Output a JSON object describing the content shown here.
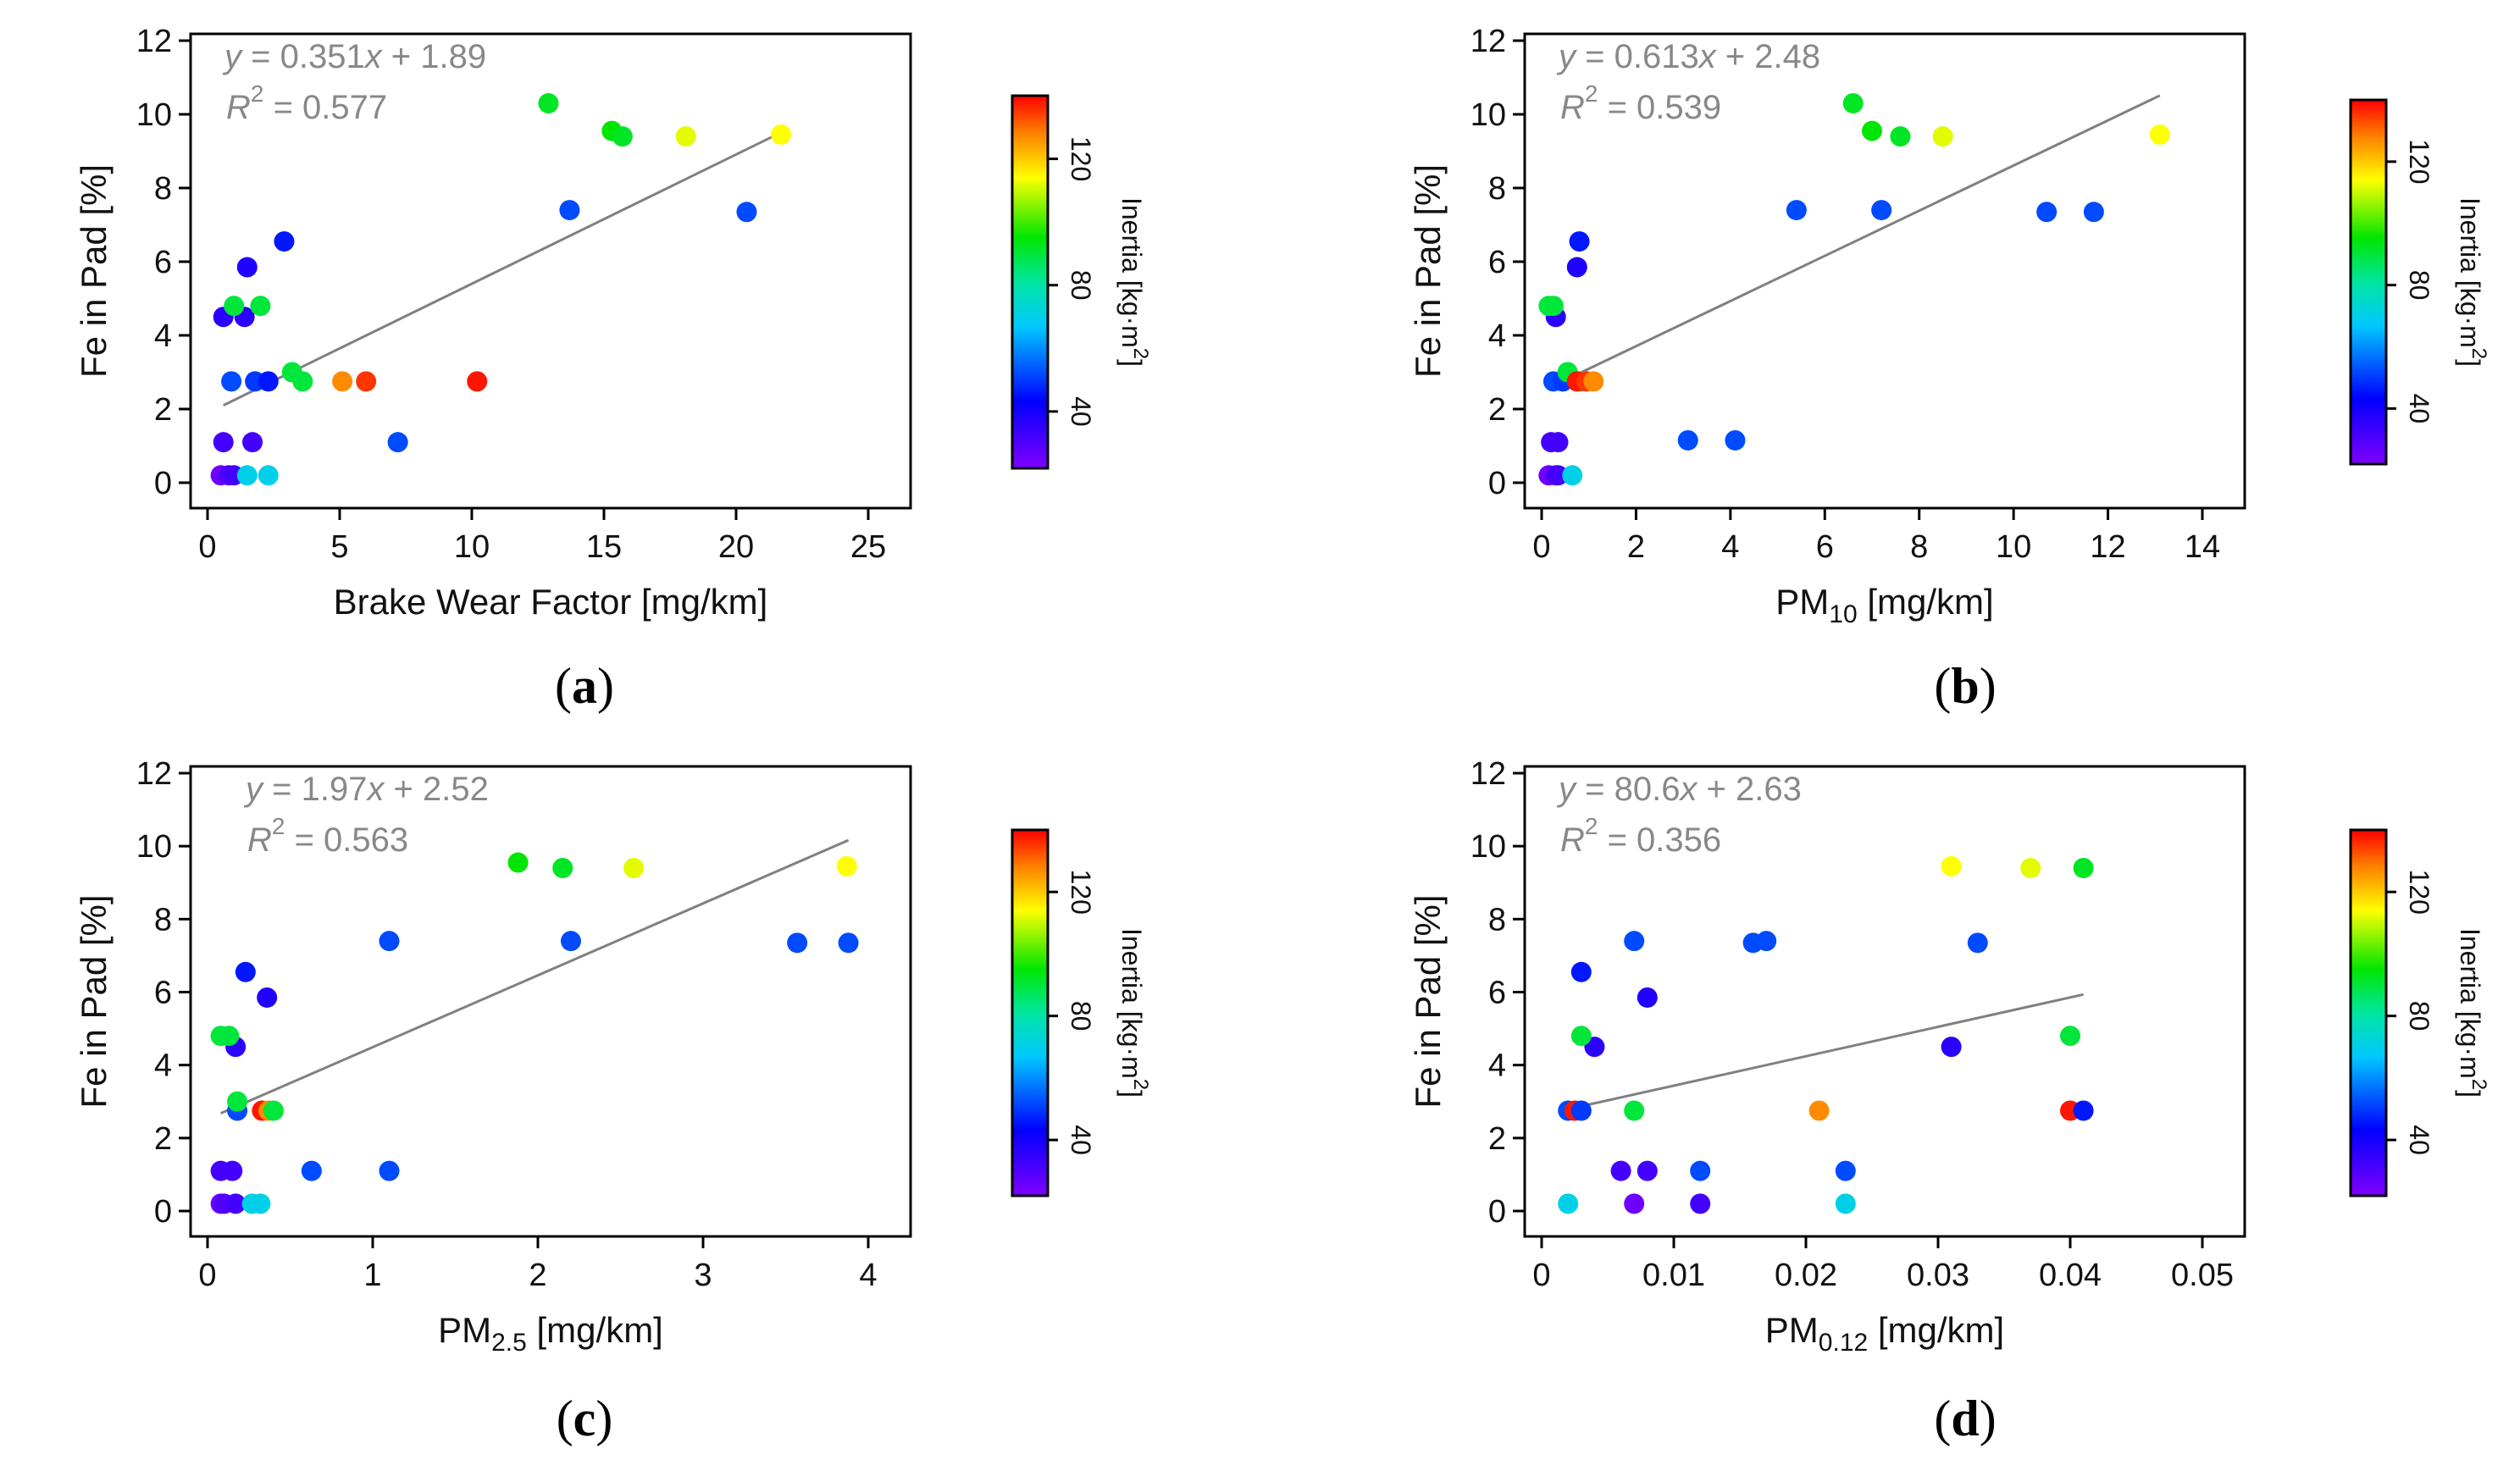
{
  "colors": {
    "trend_line": "#808080",
    "axis": "#000000",
    "equation_text": "#888888"
  },
  "colorbar": {
    "label_text": "Inertia [kg·m",
    "label_sup": "2",
    "label_close": "]",
    "ticks": [
      40,
      80,
      120
    ],
    "min": 22,
    "max": 140
  },
  "chart_data": [
    {
      "type": "scatter",
      "panel_label": "a",
      "xlabel_main": "Brake Wear Factor [mg/km]",
      "xlabel_sub": "",
      "xlabel_tail": "",
      "ylabel": "Fe in Pad [%]",
      "xlim": [
        0,
        25
      ],
      "ylim": [
        0,
        12
      ],
      "xticks": [
        0,
        5,
        10,
        15,
        20,
        25
      ],
      "xtick_labels": [
        "0",
        "5",
        "10",
        "15",
        "20",
        "25"
      ],
      "yticks": [
        0,
        2,
        4,
        6,
        8,
        10,
        12
      ],
      "ytick_labels": [
        "0",
        "2",
        "4",
        "6",
        "8",
        "10",
        "12"
      ],
      "equation": "y = 0.351x + 1.89",
      "r_squared": "R2 = 0.577",
      "fit": {
        "slope": 0.351,
        "intercept": 1.89,
        "x_range": [
          0.6,
          21.8
        ]
      },
      "points": [
        {
          "x": 0.5,
          "y": 0.2,
          "inertia": 25
        },
        {
          "x": 0.8,
          "y": 0.2,
          "inertia": 30
        },
        {
          "x": 1.0,
          "y": 0.2,
          "inertia": 32
        },
        {
          "x": 0.6,
          "y": 1.1,
          "inertia": 32
        },
        {
          "x": 1.7,
          "y": 1.1,
          "inertia": 32
        },
        {
          "x": 1.5,
          "y": 0.2,
          "inertia": 70
        },
        {
          "x": 2.3,
          "y": 0.2,
          "inertia": 70
        },
        {
          "x": 7.2,
          "y": 1.1,
          "inertia": 52
        },
        {
          "x": 0.9,
          "y": 2.75,
          "inertia": 52
        },
        {
          "x": 1.8,
          "y": 2.75,
          "inertia": 50
        },
        {
          "x": 2.3,
          "y": 2.75,
          "inertia": 46
        },
        {
          "x": 3.2,
          "y": 3.0,
          "inertia": 90
        },
        {
          "x": 3.6,
          "y": 2.75,
          "inertia": 90
        },
        {
          "x": 5.1,
          "y": 2.75,
          "inertia": 127
        },
        {
          "x": 6.0,
          "y": 2.75,
          "inertia": 135
        },
        {
          "x": 10.2,
          "y": 2.75,
          "inertia": 138
        },
        {
          "x": 0.6,
          "y": 4.5,
          "inertia": 36
        },
        {
          "x": 1.4,
          "y": 4.5,
          "inertia": 36
        },
        {
          "x": 1.0,
          "y": 4.8,
          "inertia": 90
        },
        {
          "x": 2.0,
          "y": 4.8,
          "inertia": 90
        },
        {
          "x": 1.5,
          "y": 5.85,
          "inertia": 38
        },
        {
          "x": 2.9,
          "y": 6.55,
          "inertia": 46
        },
        {
          "x": 13.7,
          "y": 7.4,
          "inertia": 52
        },
        {
          "x": 20.4,
          "y": 7.35,
          "inertia": 52
        },
        {
          "x": 12.9,
          "y": 10.3,
          "inertia": 92
        },
        {
          "x": 15.3,
          "y": 9.55,
          "inertia": 95
        },
        {
          "x": 15.7,
          "y": 9.4,
          "inertia": 92
        },
        {
          "x": 18.1,
          "y": 9.4,
          "inertia": 112
        },
        {
          "x": 21.7,
          "y": 9.45,
          "inertia": 114
        }
      ]
    },
    {
      "type": "scatter",
      "panel_label": "b",
      "xlabel_main": "PM",
      "xlabel_sub": "10",
      "xlabel_tail": " [mg/km]",
      "ylabel": "Fe in Pad [%]",
      "xlim": [
        0,
        14
      ],
      "ylim": [
        0,
        12
      ],
      "xticks": [
        0,
        2,
        4,
        6,
        8,
        10,
        12,
        14
      ],
      "xtick_labels": [
        "0",
        "2",
        "4",
        "6",
        "8",
        "10",
        "12",
        "14"
      ],
      "yticks": [
        0,
        2,
        4,
        6,
        8,
        10,
        12
      ],
      "ytick_labels": [
        "0",
        "2",
        "4",
        "6",
        "8",
        "10",
        "12"
      ],
      "equation": "y = 0.613x + 2.48",
      "r_squared": "R2 = 0.539",
      "fit": {
        "slope": 0.613,
        "intercept": 2.48,
        "x_range": [
          0.75,
          13.1
        ]
      },
      "points": [
        {
          "x": 0.15,
          "y": 0.2,
          "inertia": 25
        },
        {
          "x": 0.3,
          "y": 0.2,
          "inertia": 30
        },
        {
          "x": 0.35,
          "y": 0.2,
          "inertia": 32
        },
        {
          "x": 0.65,
          "y": 0.2,
          "inertia": 70
        },
        {
          "x": 0.2,
          "y": 1.1,
          "inertia": 32
        },
        {
          "x": 0.35,
          "y": 1.1,
          "inertia": 32
        },
        {
          "x": 3.1,
          "y": 1.15,
          "inertia": 52
        },
        {
          "x": 4.1,
          "y": 1.15,
          "inertia": 52
        },
        {
          "x": 0.25,
          "y": 2.75,
          "inertia": 52
        },
        {
          "x": 0.45,
          "y": 2.75,
          "inertia": 50
        },
        {
          "x": 0.55,
          "y": 3.0,
          "inertia": 90
        },
        {
          "x": 0.85,
          "y": 2.75,
          "inertia": 90
        },
        {
          "x": 0.75,
          "y": 2.75,
          "inertia": 138
        },
        {
          "x": 0.95,
          "y": 2.75,
          "inertia": 135
        },
        {
          "x": 1.1,
          "y": 2.75,
          "inertia": 127
        },
        {
          "x": 0.3,
          "y": 4.5,
          "inertia": 36
        },
        {
          "x": 0.15,
          "y": 4.8,
          "inertia": 90
        },
        {
          "x": 0.25,
          "y": 4.8,
          "inertia": 90
        },
        {
          "x": 0.75,
          "y": 5.85,
          "inertia": 38
        },
        {
          "x": 0.8,
          "y": 6.55,
          "inertia": 46
        },
        {
          "x": 5.4,
          "y": 7.4,
          "inertia": 52
        },
        {
          "x": 7.2,
          "y": 7.4,
          "inertia": 52
        },
        {
          "x": 10.7,
          "y": 7.35,
          "inertia": 52
        },
        {
          "x": 11.7,
          "y": 7.35,
          "inertia": 52
        },
        {
          "x": 6.6,
          "y": 10.3,
          "inertia": 92
        },
        {
          "x": 7.0,
          "y": 9.55,
          "inertia": 95
        },
        {
          "x": 7.6,
          "y": 9.4,
          "inertia": 92
        },
        {
          "x": 8.5,
          "y": 9.4,
          "inertia": 112
        },
        {
          "x": 13.1,
          "y": 9.45,
          "inertia": 114
        }
      ]
    },
    {
      "type": "scatter",
      "panel_label": "c",
      "xlabel_main": "PM",
      "xlabel_sub": "2.5",
      "xlabel_tail": " [mg/km]",
      "ylabel": "Fe in Pad [%]",
      "xlim": [
        0,
        4
      ],
      "ylim": [
        0,
        12
      ],
      "xticks": [
        0,
        1,
        2,
        3,
        4
      ],
      "xtick_labels": [
        "0",
        "1",
        "2",
        "3",
        "4"
      ],
      "yticks": [
        0,
        2,
        4,
        6,
        8,
        10,
        12
      ],
      "ytick_labels": [
        "0",
        "2",
        "4",
        "6",
        "8",
        "10",
        "12"
      ],
      "equation": "y = 1.97x + 2.52",
      "r_squared": "R2 = 0.563",
      "fit": {
        "slope": 1.97,
        "intercept": 2.52,
        "x_range": [
          0.08,
          3.88
        ]
      },
      "points": [
        {
          "x": 0.08,
          "y": 0.2,
          "inertia": 25
        },
        {
          "x": 0.1,
          "y": 0.2,
          "inertia": 30
        },
        {
          "x": 0.17,
          "y": 0.2,
          "inertia": 32
        },
        {
          "x": 0.27,
          "y": 0.2,
          "inertia": 70
        },
        {
          "x": 0.32,
          "y": 0.2,
          "inertia": 70
        },
        {
          "x": 0.08,
          "y": 1.1,
          "inertia": 32
        },
        {
          "x": 0.15,
          "y": 1.1,
          "inertia": 32
        },
        {
          "x": 0.63,
          "y": 1.1,
          "inertia": 52
        },
        {
          "x": 1.1,
          "y": 1.1,
          "inertia": 52
        },
        {
          "x": 0.18,
          "y": 2.75,
          "inertia": 52
        },
        {
          "x": 0.18,
          "y": 3.0,
          "inertia": 90
        },
        {
          "x": 0.33,
          "y": 2.75,
          "inertia": 138
        },
        {
          "x": 0.37,
          "y": 2.75,
          "inertia": 127
        },
        {
          "x": 0.4,
          "y": 2.75,
          "inertia": 90
        },
        {
          "x": 0.17,
          "y": 4.5,
          "inertia": 36
        },
        {
          "x": 0.08,
          "y": 4.8,
          "inertia": 90
        },
        {
          "x": 0.13,
          "y": 4.8,
          "inertia": 90
        },
        {
          "x": 0.36,
          "y": 5.85,
          "inertia": 38
        },
        {
          "x": 0.23,
          "y": 6.55,
          "inertia": 46
        },
        {
          "x": 1.1,
          "y": 7.4,
          "inertia": 52
        },
        {
          "x": 2.2,
          "y": 7.4,
          "inertia": 52
        },
        {
          "x": 3.57,
          "y": 7.35,
          "inertia": 52
        },
        {
          "x": 3.88,
          "y": 7.35,
          "inertia": 52
        },
        {
          "x": 1.88,
          "y": 9.55,
          "inertia": 95
        },
        {
          "x": 2.15,
          "y": 9.4,
          "inertia": 92
        },
        {
          "x": 2.58,
          "y": 9.4,
          "inertia": 112
        },
        {
          "x": 3.87,
          "y": 9.45,
          "inertia": 114
        }
      ]
    },
    {
      "type": "scatter",
      "panel_label": "d",
      "xlabel_main": "PM",
      "xlabel_sub": "0.12",
      "xlabel_tail": " [mg/km]",
      "ylabel": "Fe in Pad [%]",
      "xlim": [
        0,
        0.05
      ],
      "ylim": [
        0,
        12
      ],
      "xticks": [
        0,
        0.01,
        0.02,
        0.03,
        0.04,
        0.05
      ],
      "xtick_labels": [
        "0",
        "0.01",
        "0.02",
        "0.03",
        "0.04",
        "0.05"
      ],
      "yticks": [
        0,
        2,
        4,
        6,
        8,
        10,
        12
      ],
      "ytick_labels": [
        "0",
        "2",
        "4",
        "6",
        "8",
        "10",
        "12"
      ],
      "equation": "y = 80.6x + 2.63",
      "r_squared": "R2 = 0.356",
      "fit": {
        "slope": 80.6,
        "intercept": 2.63,
        "x_range": [
          0.0025,
          0.041
        ]
      },
      "points": [
        {
          "x": 0.002,
          "y": 0.2,
          "inertia": 70
        },
        {
          "x": 0.007,
          "y": 0.2,
          "inertia": 25
        },
        {
          "x": 0.012,
          "y": 0.2,
          "inertia": 32
        },
        {
          "x": 0.023,
          "y": 0.2,
          "inertia": 70
        },
        {
          "x": 0.006,
          "y": 1.1,
          "inertia": 32
        },
        {
          "x": 0.008,
          "y": 1.1,
          "inertia": 32
        },
        {
          "x": 0.012,
          "y": 1.1,
          "inertia": 52
        },
        {
          "x": 0.023,
          "y": 1.1,
          "inertia": 52
        },
        {
          "x": 0.002,
          "y": 2.75,
          "inertia": 52
        },
        {
          "x": 0.0025,
          "y": 2.75,
          "inertia": 138
        },
        {
          "x": 0.003,
          "y": 2.75,
          "inertia": 50
        },
        {
          "x": 0.007,
          "y": 2.75,
          "inertia": 90
        },
        {
          "x": 0.021,
          "y": 2.75,
          "inertia": 127
        },
        {
          "x": 0.04,
          "y": 2.75,
          "inertia": 138
        },
        {
          "x": 0.041,
          "y": 2.75,
          "inertia": 46
        },
        {
          "x": 0.004,
          "y": 4.5,
          "inertia": 36
        },
        {
          "x": 0.031,
          "y": 4.5,
          "inertia": 36
        },
        {
          "x": 0.003,
          "y": 4.8,
          "inertia": 90
        },
        {
          "x": 0.04,
          "y": 4.8,
          "inertia": 90
        },
        {
          "x": 0.008,
          "y": 5.85,
          "inertia": 38
        },
        {
          "x": 0.003,
          "y": 6.55,
          "inertia": 46
        },
        {
          "x": 0.007,
          "y": 7.4,
          "inertia": 52
        },
        {
          "x": 0.016,
          "y": 7.35,
          "inertia": 52
        },
        {
          "x": 0.017,
          "y": 7.4,
          "inertia": 52
        },
        {
          "x": 0.033,
          "y": 7.35,
          "inertia": 52
        },
        {
          "x": 0.031,
          "y": 9.45,
          "inertia": 114
        },
        {
          "x": 0.037,
          "y": 9.4,
          "inertia": 112
        },
        {
          "x": 0.041,
          "y": 9.4,
          "inertia": 92
        }
      ]
    }
  ]
}
